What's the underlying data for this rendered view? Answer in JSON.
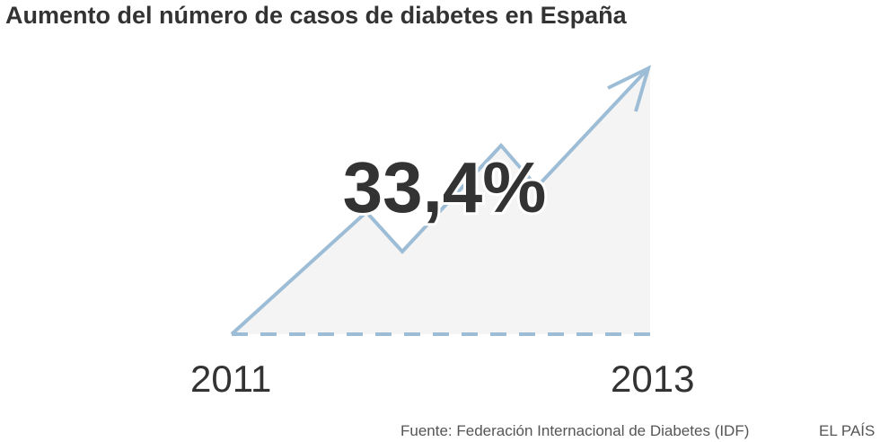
{
  "title": "Aumento del número de casos de diabetes en España",
  "chart_data": {
    "type": "area",
    "title": "Aumento del número de casos de diabetes en España",
    "x": [
      "2011",
      "2013"
    ],
    "start_label": "2011",
    "end_label": "2013",
    "value_label": "33,4%",
    "change_percent": 33.4,
    "grid": false,
    "colors": {
      "line": "#9dbdd6",
      "fill": "#f4f4f4",
      "text": "#333333"
    }
  },
  "footer": {
    "source": "Fuente: Federación Internacional de Diabetes (IDF)",
    "brand": "EL PAÍS"
  }
}
